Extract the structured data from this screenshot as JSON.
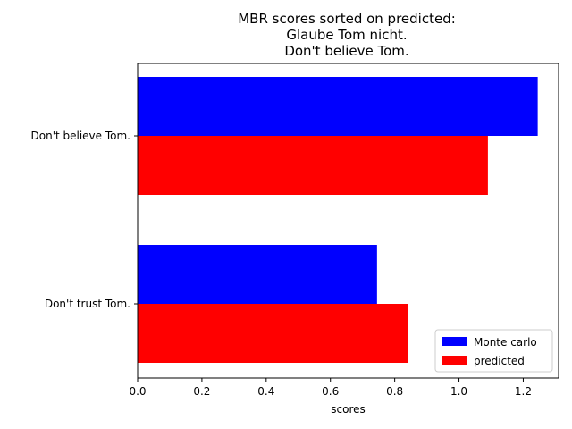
{
  "chart_data": {
    "type": "bar",
    "orientation": "horizontal",
    "title_lines": [
      "MBR scores sorted on predicted:",
      "Glaube Tom nicht.",
      "Don't believe Tom."
    ],
    "xlabel": "scores",
    "ylabel": "",
    "categories": [
      "Don't believe Tom.",
      "Don't trust Tom."
    ],
    "series": [
      {
        "name": "Monte carlo",
        "color": "#0000ff",
        "values": [
          1.245,
          0.745
        ]
      },
      {
        "name": "predicted",
        "color": "#ff0000",
        "values": [
          1.09,
          0.84
        ]
      }
    ],
    "xlim": [
      0,
      1.31
    ],
    "xticks": [
      "0.0",
      "0.2",
      "0.4",
      "0.6",
      "0.8",
      "1.0",
      "1.2"
    ],
    "grid": false,
    "legend_position": "lower-right"
  }
}
